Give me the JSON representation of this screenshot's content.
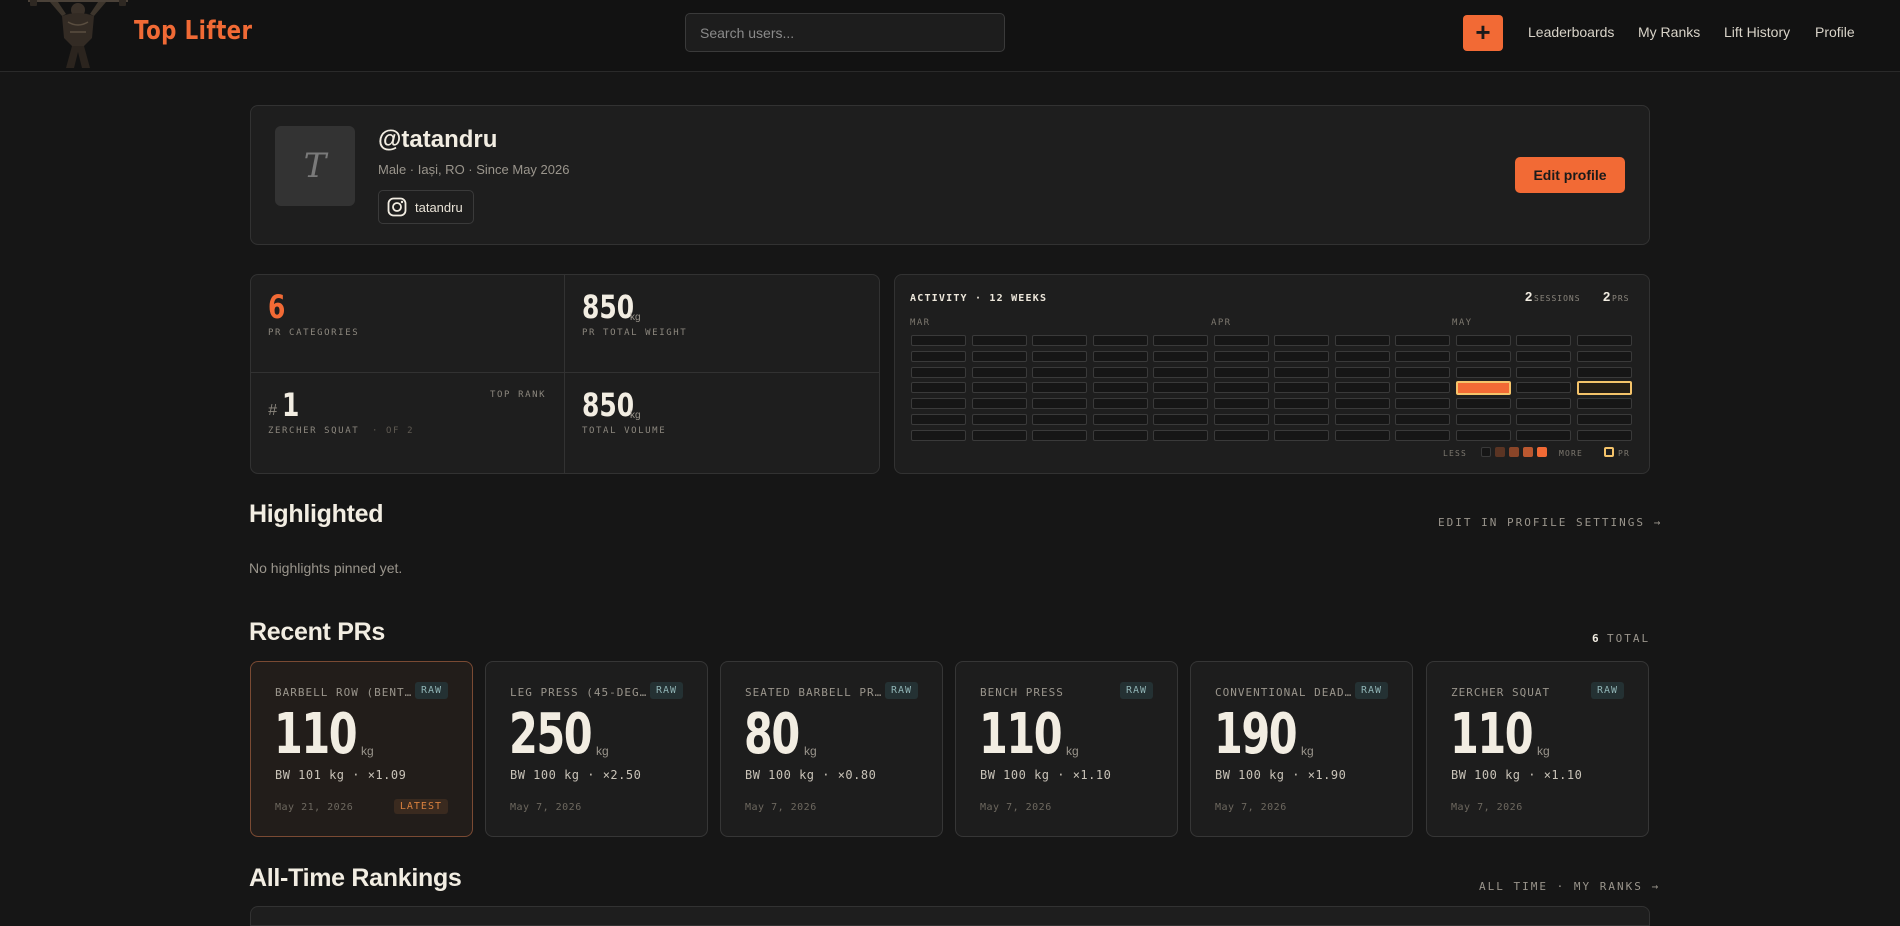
{
  "brand": {
    "name": "Top Lifter"
  },
  "search": {
    "placeholder": "Search users..."
  },
  "nav": {
    "add_label": "+",
    "items": [
      {
        "label": "Leaderboards"
      },
      {
        "label": "My Ranks"
      },
      {
        "label": "Lift History"
      },
      {
        "label": "Profile"
      }
    ]
  },
  "profile": {
    "avatar_initial": "T",
    "handle": "@tatandru",
    "meta": "Male  · Iași, RO  · Since May 2026",
    "instagram": "tatandru",
    "edit_label": "Edit profile"
  },
  "stats": {
    "pr_categories": {
      "value": "6",
      "label": "PR CATEGORIES"
    },
    "pr_total_weight": {
      "value": "850",
      "unit": "kg",
      "label": "PR TOTAL WEIGHT"
    },
    "top_rank": {
      "hash": "#",
      "value": "1",
      "tag": "TOP RANK",
      "lift": "ZERCHER SQUAT",
      "of": "· OF 2"
    },
    "total_volume": {
      "value": "850",
      "unit": "kg",
      "label": "TOTAL VOLUME"
    }
  },
  "activity": {
    "title": "ACTIVITY · 12 WEEKS",
    "sessions_value": "2",
    "sessions_label": "SESSIONS",
    "prs_value": "2",
    "prs_label": "PRS",
    "months": [
      "MAR",
      "APR",
      "MAY"
    ],
    "legend_less": "LESS",
    "legend_more": "MORE",
    "legend_pr": "PR",
    "active_cells": [
      {
        "week": 9,
        "day": 3,
        "kind": "session"
      },
      {
        "week": 11,
        "day": 3,
        "kind": "pr"
      }
    ],
    "colors": {
      "accent": "#f26a35",
      "pr_border": "#f4c36a"
    }
  },
  "highlighted": {
    "title": "Highlighted",
    "link": "EDIT IN PROFILE SETTINGS →",
    "empty": "No highlights pinned yet."
  },
  "recent_prs": {
    "title": "Recent PRs",
    "count": "6",
    "count_label": "TOTAL",
    "items": [
      {
        "name": "BARBELL ROW (BENT…",
        "badge": "RAW",
        "weight": "110",
        "unit": "kg",
        "bw": "BW 101 kg  ·  ×1.09",
        "date": "May 21, 2026",
        "latest": "LATEST"
      },
      {
        "name": "LEG PRESS (45-DEG…",
        "badge": "RAW",
        "weight": "250",
        "unit": "kg",
        "bw": "BW 100 kg  ·  ×2.50",
        "date": "May 7, 2026"
      },
      {
        "name": "SEATED BARBELL PR…",
        "badge": "RAW",
        "weight": "80",
        "unit": "kg",
        "bw": "BW 100 kg  ·  ×0.80",
        "date": "May 7, 2026"
      },
      {
        "name": "BENCH PRESS",
        "badge": "RAW",
        "weight": "110",
        "unit": "kg",
        "bw": "BW 100 kg  ·  ×1.10",
        "date": "May 7, 2026"
      },
      {
        "name": "CONVENTIONAL DEAD…",
        "badge": "RAW",
        "weight": "190",
        "unit": "kg",
        "bw": "BW 100 kg  ·  ×1.90",
        "date": "May 7, 2026"
      },
      {
        "name": "ZERCHER SQUAT",
        "badge": "RAW",
        "weight": "110",
        "unit": "kg",
        "bw": "BW 100 kg  ·  ×1.10",
        "date": "May 7, 2026"
      }
    ]
  },
  "rankings": {
    "title": "All-Time Rankings",
    "link": "ALL TIME · MY RANKS →"
  }
}
